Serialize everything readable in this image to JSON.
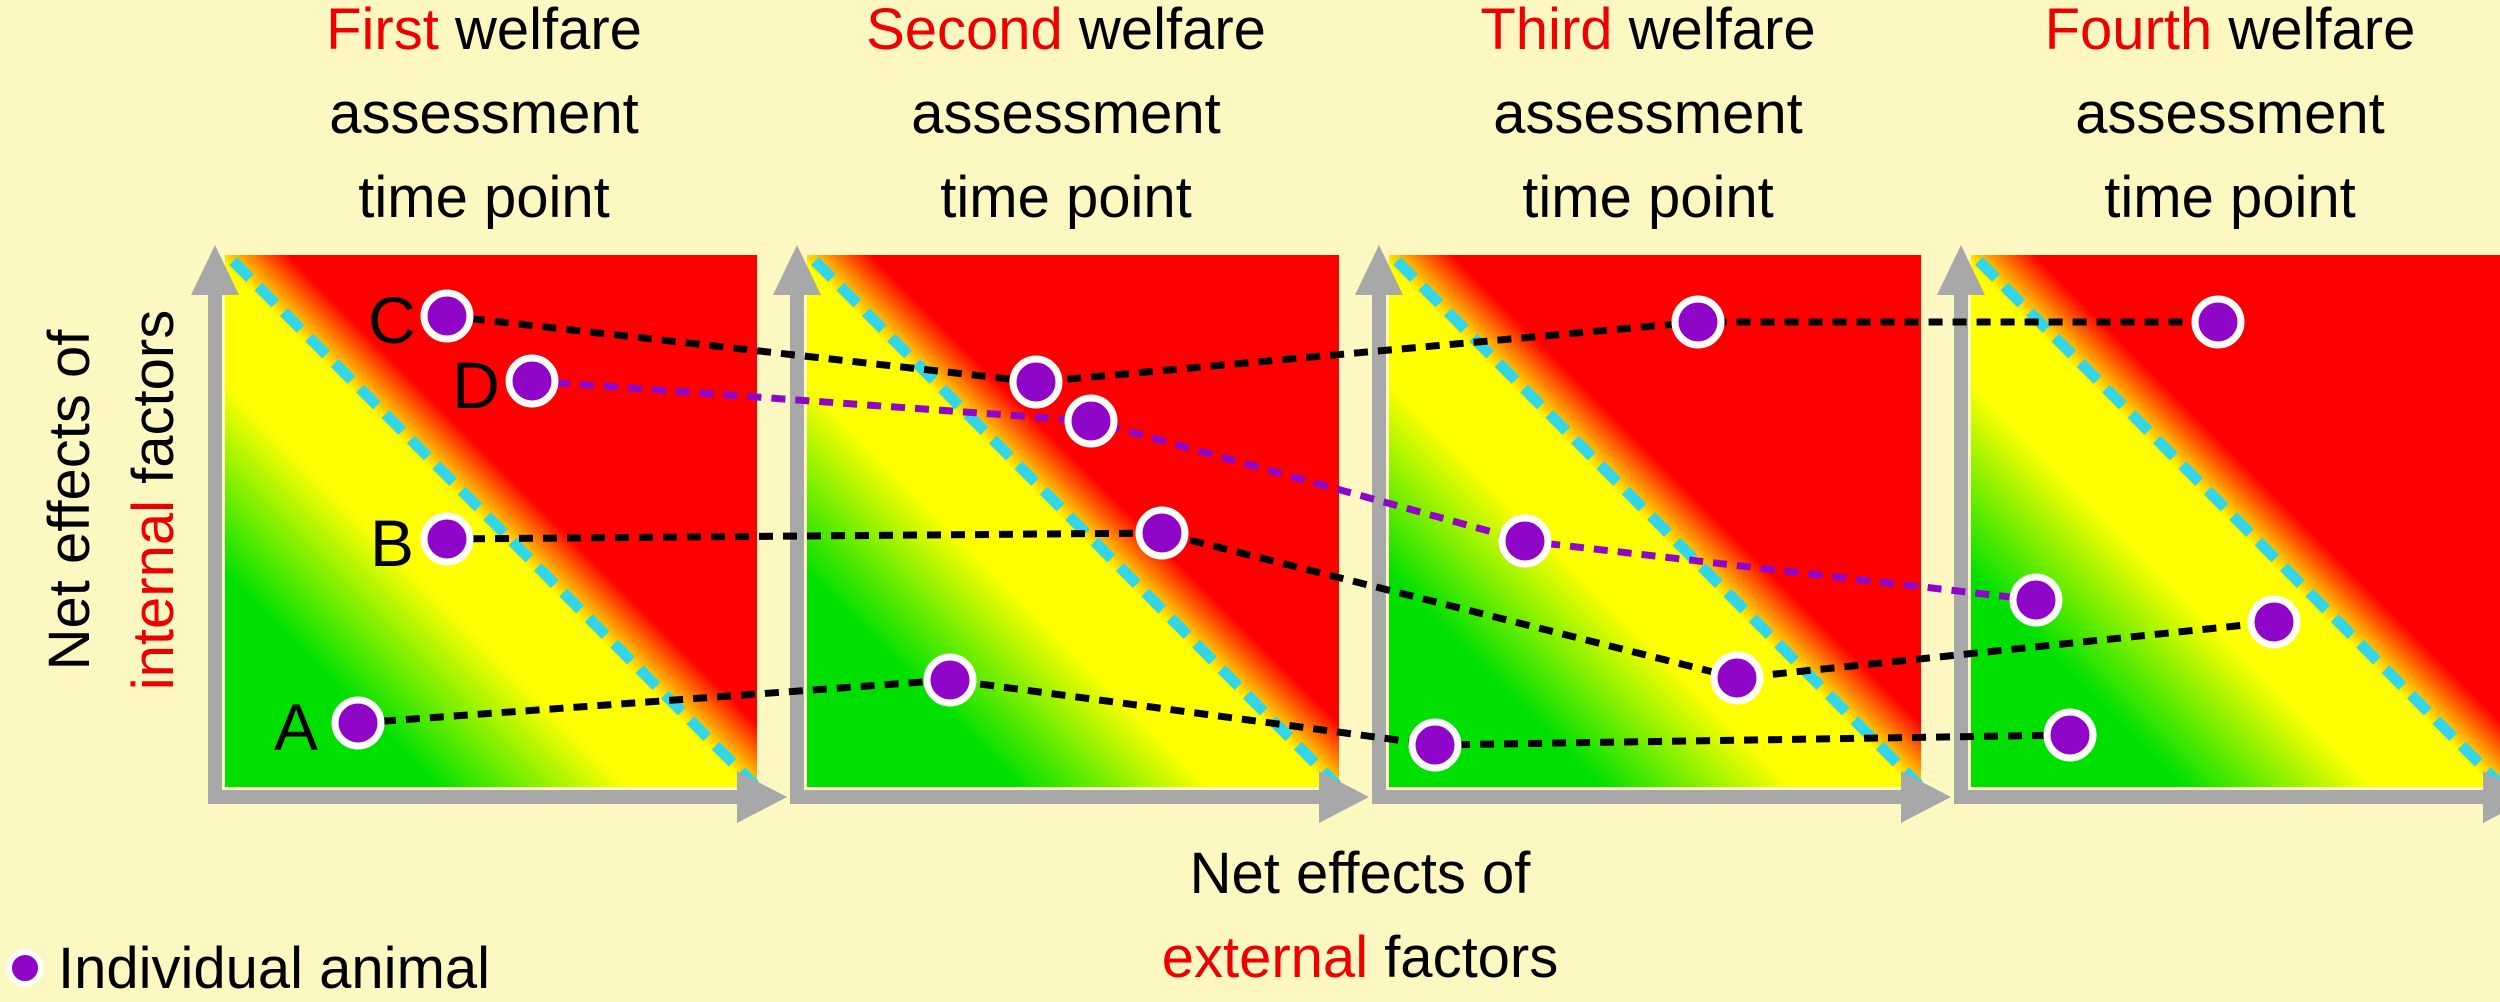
{
  "panels": [
    {
      "highlight": "First",
      "rest": " welfare",
      "line2": "assessment",
      "line3": "time point"
    },
    {
      "highlight": "Second",
      "rest": " welfare",
      "line2": "assessment",
      "line3": "time point"
    },
    {
      "highlight": "Third",
      "rest": " welfare",
      "line2": "assessment",
      "line3": "time point"
    },
    {
      "highlight": "Fourth",
      "rest": " welfare",
      "line2": "assessment",
      "line3": "time point"
    }
  ],
  "x_axis": {
    "line1": "Net effects of",
    "highlight": "external",
    "rest": " factors"
  },
  "y_axis": {
    "line1": "Net effects of",
    "highlight": "internal",
    "rest": " factors"
  },
  "legend": {
    "label": "Individual animal"
  },
  "animals": [
    {
      "id": "A",
      "label": "A",
      "trajectory_color": "#000000"
    },
    {
      "id": "B",
      "label": "B",
      "trajectory_color": "#000000"
    },
    {
      "id": "C",
      "label": "C",
      "trajectory_color": "#000000"
    },
    {
      "id": "D",
      "label": "D",
      "trajectory_color": "#8f06c9"
    }
  ],
  "colors": {
    "background": "#fdf8c2",
    "good_zone": "#00e000",
    "mid_zone": "#ffff00",
    "bad_zone": "#ff0000",
    "threshold_line": "#33d6e6",
    "axis": "#a8a8a8",
    "animal_fill": "#8f06c9",
    "highlight_text": "#ee0000"
  }
}
